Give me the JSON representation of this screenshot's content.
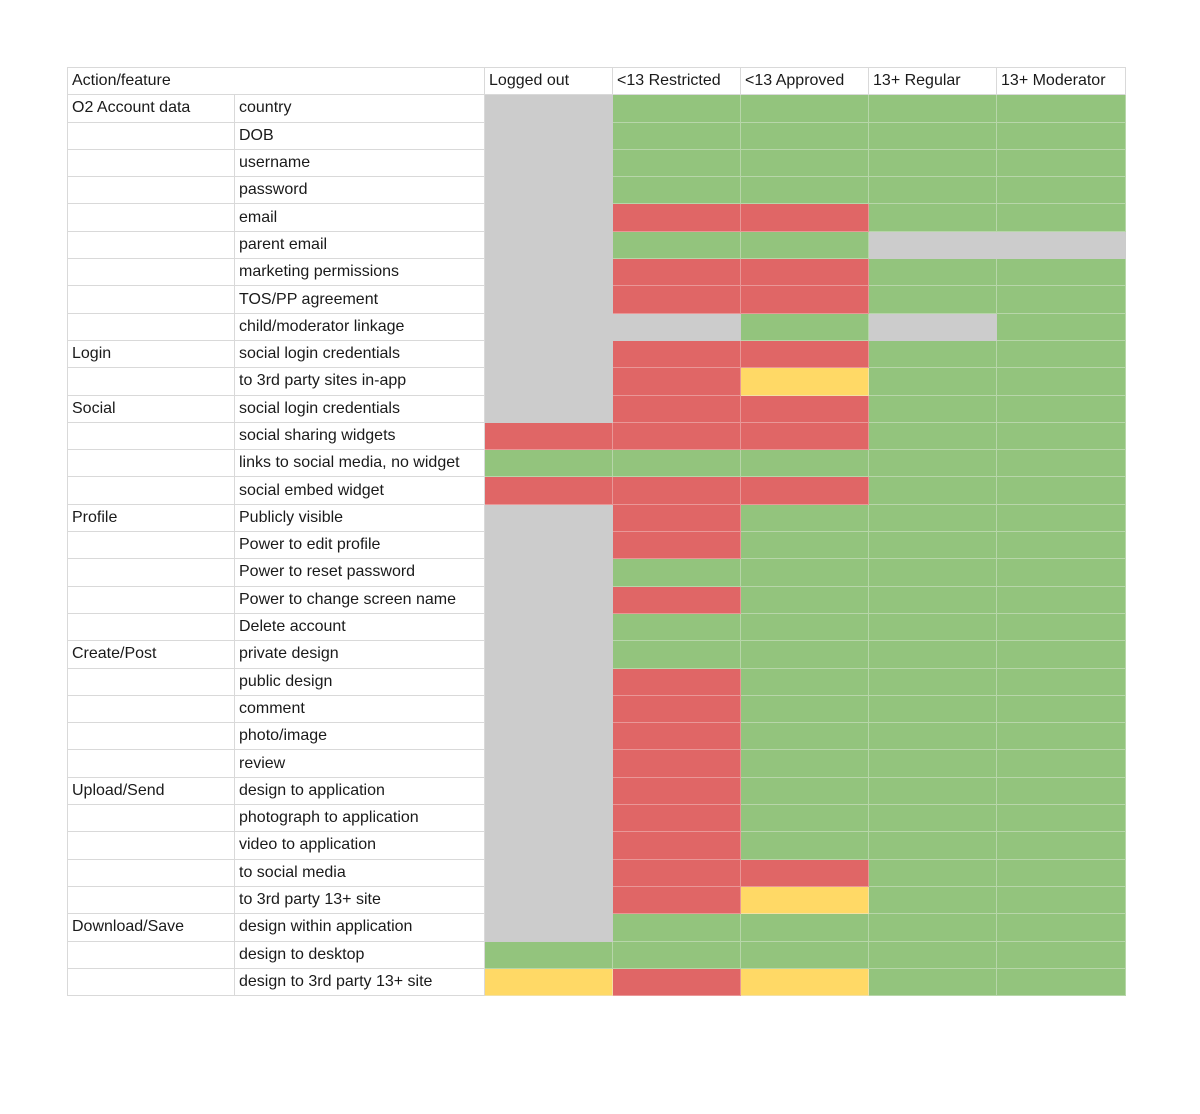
{
  "header": {
    "action_feature": "Action/feature",
    "columns": [
      "Logged out",
      "<13 Restricted",
      "<13 Approved",
      "13+ Regular",
      "13+ Moderator"
    ]
  },
  "colors": {
    "green": "#93c47d",
    "red": "#e06666",
    "gray": "#cccccc",
    "yellow": "#ffd966"
  },
  "rows": [
    {
      "category": "O2 Account data",
      "feature": "country",
      "cells": [
        "gray",
        "green",
        "green",
        "green",
        "green"
      ]
    },
    {
      "category": "",
      "feature": "DOB",
      "cells": [
        "gray",
        "green",
        "green",
        "green",
        "green"
      ]
    },
    {
      "category": "",
      "feature": "username",
      "cells": [
        "gray",
        "green",
        "green",
        "green",
        "green"
      ]
    },
    {
      "category": "",
      "feature": "password",
      "cells": [
        "gray",
        "green",
        "green",
        "green",
        "green"
      ]
    },
    {
      "category": "",
      "feature": "email",
      "cells": [
        "gray",
        "red",
        "red",
        "green",
        "green"
      ]
    },
    {
      "category": "",
      "feature": "parent email",
      "cells": [
        "gray",
        "green",
        "green",
        "gray",
        "gray"
      ]
    },
    {
      "category": "",
      "feature": "marketing permissions",
      "cells": [
        "gray",
        "red",
        "red",
        "green",
        "green"
      ]
    },
    {
      "category": "",
      "feature": "TOS/PP agreement",
      "cells": [
        "gray",
        "red",
        "red",
        "green",
        "green"
      ]
    },
    {
      "category": "",
      "feature": "child/moderator linkage",
      "cells": [
        "gray",
        "gray",
        "green",
        "gray",
        "green"
      ]
    },
    {
      "category": "Login",
      "feature": "social login credentials",
      "cells": [
        "gray",
        "red",
        "red",
        "green",
        "green"
      ]
    },
    {
      "category": "",
      "feature": "to 3rd party sites in-app",
      "cells": [
        "gray",
        "red",
        "yellow",
        "green",
        "green"
      ]
    },
    {
      "category": "Social",
      "feature": "social login credentials",
      "cells": [
        "gray",
        "red",
        "red",
        "green",
        "green"
      ]
    },
    {
      "category": "",
      "feature": "social sharing widgets",
      "cells": [
        "red",
        "red",
        "red",
        "green",
        "green"
      ]
    },
    {
      "category": "",
      "feature": "links to social media, no widget",
      "cells": [
        "green",
        "green",
        "green",
        "green",
        "green"
      ]
    },
    {
      "category": "",
      "feature": "social embed widget",
      "cells": [
        "red",
        "red",
        "red",
        "green",
        "green"
      ]
    },
    {
      "category": "Profile",
      "feature": "Publicly visible",
      "cells": [
        "gray",
        "red",
        "green",
        "green",
        "green"
      ]
    },
    {
      "category": "",
      "feature": "Power to edit profile",
      "cells": [
        "gray",
        "red",
        "green",
        "green",
        "green"
      ]
    },
    {
      "category": "",
      "feature": "Power to reset password",
      "cells": [
        "gray",
        "green",
        "green",
        "green",
        "green"
      ]
    },
    {
      "category": "",
      "feature": "Power to change screen name",
      "cells": [
        "gray",
        "red",
        "green",
        "green",
        "green"
      ]
    },
    {
      "category": "",
      "feature": "Delete account",
      "cells": [
        "gray",
        "green",
        "green",
        "green",
        "green"
      ]
    },
    {
      "category": "Create/Post",
      "feature": "private design",
      "cells": [
        "gray",
        "green",
        "green",
        "green",
        "green"
      ]
    },
    {
      "category": "",
      "feature": "public design",
      "cells": [
        "gray",
        "red",
        "green",
        "green",
        "green"
      ]
    },
    {
      "category": "",
      "feature": "comment",
      "cells": [
        "gray",
        "red",
        "green",
        "green",
        "green"
      ]
    },
    {
      "category": "",
      "feature": "photo/image",
      "cells": [
        "gray",
        "red",
        "green",
        "green",
        "green"
      ]
    },
    {
      "category": "",
      "feature": "review",
      "cells": [
        "gray",
        "red",
        "green",
        "green",
        "green"
      ]
    },
    {
      "category": "Upload/Send",
      "feature": "design to application",
      "cells": [
        "gray",
        "red",
        "green",
        "green",
        "green"
      ]
    },
    {
      "category": "",
      "feature": "photograph to application",
      "cells": [
        "gray",
        "red",
        "green",
        "green",
        "green"
      ]
    },
    {
      "category": "",
      "feature": "video to application",
      "cells": [
        "gray",
        "red",
        "green",
        "green",
        "green"
      ]
    },
    {
      "category": "",
      "feature": "to social media",
      "cells": [
        "gray",
        "red",
        "red",
        "green",
        "green"
      ]
    },
    {
      "category": "",
      "feature": "to 3rd party 13+ site",
      "cells": [
        "gray",
        "red",
        "yellow",
        "green",
        "green"
      ]
    },
    {
      "category": "Download/Save",
      "feature": "design within application",
      "cells": [
        "gray",
        "green",
        "green",
        "green",
        "green"
      ]
    },
    {
      "category": "",
      "feature": "design to desktop",
      "cells": [
        "green",
        "green",
        "green",
        "green",
        "green"
      ]
    },
    {
      "category": "",
      "feature": "design to 3rd party 13+ site",
      "cells": [
        "yellow",
        "red",
        "yellow",
        "green",
        "green"
      ]
    }
  ]
}
